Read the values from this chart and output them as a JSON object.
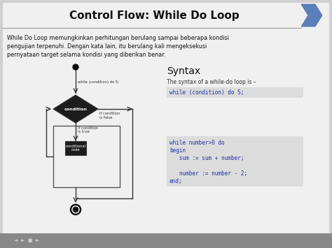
{
  "title": "Control Flow: While Do Loop",
  "body_bg": "#3a3a3a",
  "content_bg": "#d8d8d8",
  "title_bg": "#f0f0f0",
  "description": "While Do Loop memungkinkan perhitungan berulang sampai beberapa kondisi\npengujian terpenuhi. Dengan kata lain, itu berulang kali mengeksekusi\npernyataan target selama kondisi yang diberikan benar.",
  "syntax_title": "Syntax",
  "syntax_desc": "The syntax of a while-do loop is –",
  "syntax_code": "while (condition) do S;",
  "example_code_lines": [
    "while number>0 do",
    "begin",
    "   sum := sum + number;",
    "",
    "   number := number - 2;",
    "end;"
  ],
  "flowchart_label_top": "while (condition) do S;",
  "flowchart_label_condition": "condition",
  "flowchart_label_cond_code": "conditional\ncode",
  "flowchart_label_if_true": "If condition\nis true",
  "flowchart_label_if_false": "If condition\nis false",
  "chevron_color": "#5b7fbb",
  "diamond_fill": "#1c1c1c",
  "condbox_fill": "#1c1c1c",
  "line_color": "#444444",
  "code_bg": "#dcdcdc",
  "code_text_color": "#2233aa",
  "bottom_bar_color": "#c8c8c8",
  "toolbar_bg": "#888888"
}
